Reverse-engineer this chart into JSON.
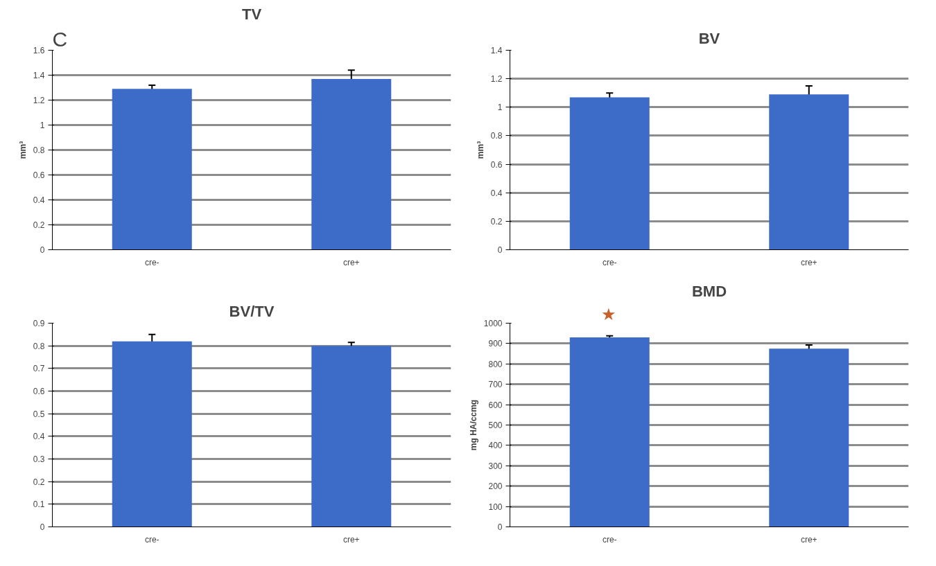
{
  "chart_data": [
    {
      "type": "bar",
      "title": "TV",
      "ylabel": "mm³",
      "categories": [
        "cre-",
        "cre+"
      ],
      "values": [
        1.29,
        1.37
      ],
      "errors": [
        0.03,
        0.07
      ],
      "color": "#3d6cc8",
      "ylim": [
        0,
        1.6
      ],
      "yticks": [
        0,
        0.2,
        0.4,
        0.6,
        0.8,
        1,
        1.2,
        1.4,
        1.6
      ],
      "grid": "y",
      "annotations": [
        "C"
      ]
    },
    {
      "type": "bar",
      "title": "BV",
      "ylabel": "mm³",
      "categories": [
        "cre-",
        "cre+"
      ],
      "values": [
        1.07,
        1.09
      ],
      "errors": [
        0.03,
        0.06
      ],
      "color": "#3d6cc8",
      "ylim": [
        0,
        1.4
      ],
      "yticks": [
        0,
        0.2,
        0.4,
        0.6,
        0.8,
        1,
        1.2,
        1.4
      ],
      "grid": "y"
    },
    {
      "type": "bar",
      "title": "BV/TV",
      "categories": [
        "cre-",
        "cre+"
      ],
      "values": [
        0.82,
        0.8
      ],
      "errors": [
        0.03,
        0.015
      ],
      "color": "#3d6cc8",
      "ylim": [
        0,
        0.9
      ],
      "yticks": [
        0,
        0.1,
        0.2,
        0.3,
        0.4,
        0.5,
        0.6,
        0.7,
        0.8,
        0.9
      ],
      "grid": "y"
    },
    {
      "type": "bar",
      "title": "BMD",
      "ylabel": "mg HA/ccmg",
      "categories": [
        "cre-",
        "cre+"
      ],
      "values": [
        930,
        875
      ],
      "errors": [
        8,
        18
      ],
      "color": "#3d6cc8",
      "ylim": [
        0,
        1000
      ],
      "yticks": [
        0,
        100,
        200,
        300,
        400,
        500,
        600,
        700,
        800,
        900,
        1000
      ],
      "grid": "y",
      "annotations": [
        "★"
      ]
    }
  ]
}
